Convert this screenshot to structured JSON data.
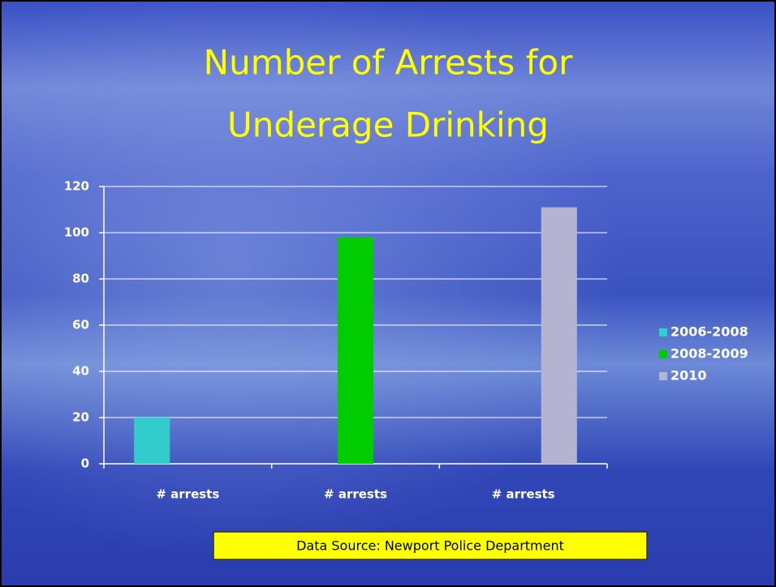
{
  "chart_data": {
    "type": "bar",
    "title": [
      "Number of Arrests for",
      "Underage Drinking"
    ],
    "categories": [
      "# arrests",
      "# arrests",
      "# arrests"
    ],
    "series": [
      {
        "name": "2006-2008",
        "color": "#33cccc",
        "values": [
          20,
          null,
          null
        ]
      },
      {
        "name": "2008-2009",
        "color": "#00cc00",
        "values": [
          null,
          98,
          null
        ]
      },
      {
        "name": "2010",
        "color": "#b4b4d2",
        "values": [
          null,
          null,
          111
        ]
      }
    ],
    "ylim": [
      0,
      120
    ],
    "yticks": [
      0,
      20,
      40,
      60,
      80,
      100,
      120
    ],
    "grid": true,
    "legend": "right",
    "source": "Data Source: Newport Police Department"
  }
}
